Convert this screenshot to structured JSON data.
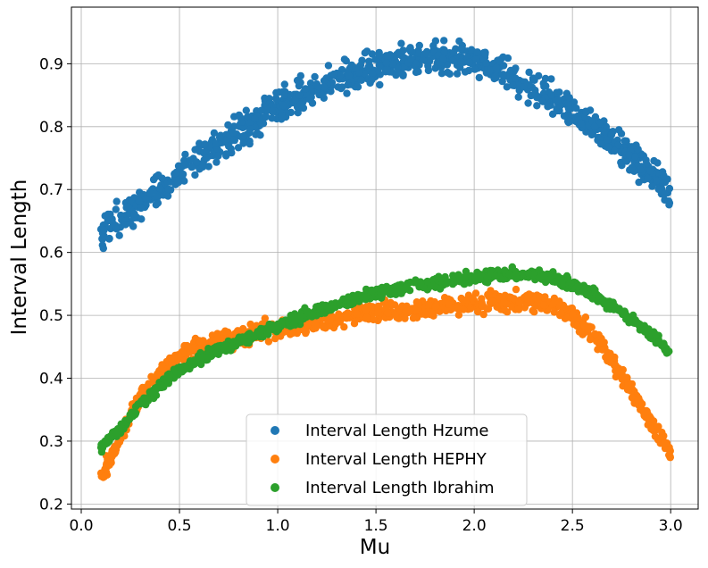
{
  "chart_data": {
    "type": "scatter",
    "xlabel": "Mu",
    "ylabel": "Interval Length",
    "xlim": [
      -0.05,
      3.14
    ],
    "ylim": [
      0.192,
      0.99
    ],
    "xticks": [
      "0.0",
      "0.5",
      "1.0",
      "1.5",
      "2.0",
      "2.5",
      "3.0"
    ],
    "yticks": [
      "0.2",
      "0.3",
      "0.4",
      "0.5",
      "0.6",
      "0.7",
      "0.8",
      "0.9"
    ],
    "grid": true,
    "legend_position": "bottom-center",
    "series": [
      {
        "name": "Interval Length Hzume",
        "color": "#1f77b4",
        "x": [
          0.1,
          0.2,
          0.3,
          0.4,
          0.5,
          0.6,
          0.7,
          0.8,
          0.9,
          1.0,
          1.1,
          1.2,
          1.3,
          1.4,
          1.5,
          1.6,
          1.7,
          1.8,
          1.9,
          2.0,
          2.1,
          2.2,
          2.3,
          2.4,
          2.5,
          2.6,
          2.7,
          2.8,
          2.9,
          3.0
        ],
        "y": [
          0.63,
          0.655,
          0.678,
          0.698,
          0.722,
          0.748,
          0.768,
          0.79,
          0.81,
          0.835,
          0.845,
          0.86,
          0.87,
          0.885,
          0.895,
          0.9,
          0.905,
          0.91,
          0.912,
          0.905,
          0.895,
          0.88,
          0.865,
          0.845,
          0.825,
          0.805,
          0.78,
          0.755,
          0.725,
          0.69
        ],
        "spread": 0.018
      },
      {
        "name": "Interval Length HEPHY",
        "color": "#ff7f0e",
        "x": [
          0.1,
          0.15,
          0.2,
          0.25,
          0.3,
          0.35,
          0.4,
          0.5,
          0.6,
          0.7,
          0.8,
          0.9,
          1.0,
          1.1,
          1.2,
          1.3,
          1.4,
          1.5,
          1.6,
          1.7,
          1.8,
          1.9,
          2.0,
          2.1,
          2.2,
          2.3,
          2.4,
          2.5,
          2.6,
          2.7,
          2.8,
          2.9,
          3.0
        ],
        "y": [
          0.25,
          0.27,
          0.305,
          0.34,
          0.37,
          0.393,
          0.412,
          0.435,
          0.448,
          0.458,
          0.466,
          0.473,
          0.478,
          0.485,
          0.49,
          0.495,
          0.5,
          0.503,
          0.507,
          0.51,
          0.513,
          0.516,
          0.518,
          0.52,
          0.522,
          0.522,
          0.518,
          0.5,
          0.47,
          0.43,
          0.38,
          0.33,
          0.28
        ],
        "spread": 0.01
      },
      {
        "name": "Interval Length Ibrahim",
        "color": "#2ca02c",
        "x": [
          0.1,
          0.15,
          0.2,
          0.25,
          0.3,
          0.35,
          0.4,
          0.5,
          0.6,
          0.7,
          0.8,
          0.9,
          1.0,
          1.1,
          1.2,
          1.3,
          1.4,
          1.5,
          1.6,
          1.7,
          1.8,
          1.9,
          2.0,
          2.1,
          2.2,
          2.3,
          2.4,
          2.5,
          2.6,
          2.7,
          2.8,
          2.9,
          3.0
        ],
        "y": [
          0.29,
          0.305,
          0.32,
          0.338,
          0.357,
          0.372,
          0.387,
          0.412,
          0.43,
          0.445,
          0.458,
          0.47,
          0.482,
          0.495,
          0.507,
          0.517,
          0.527,
          0.535,
          0.541,
          0.547,
          0.552,
          0.556,
          0.56,
          0.563,
          0.565,
          0.565,
          0.56,
          0.548,
          0.535,
          0.515,
          0.495,
          0.47,
          0.44
        ],
        "spread": 0.006
      }
    ]
  }
}
